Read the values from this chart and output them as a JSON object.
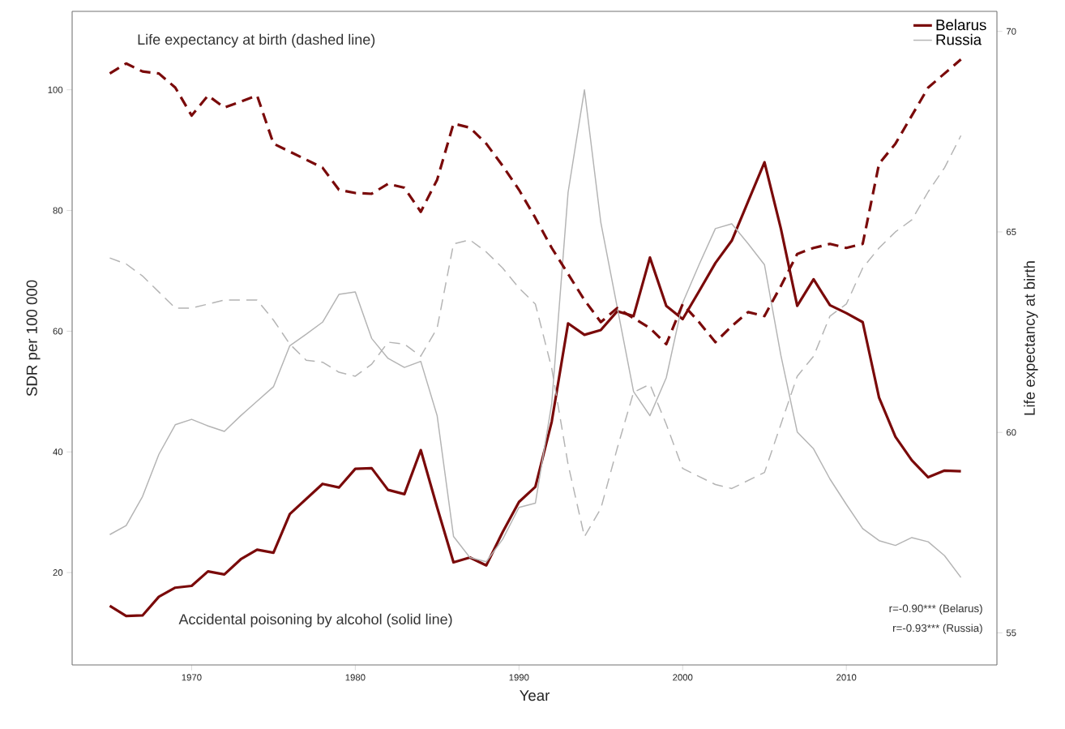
{
  "chart_data": {
    "type": "line",
    "xlabel": "Year",
    "ylabel": "SDR per 100 000",
    "y2label": "Life expectancy at birth",
    "x": [
      1965,
      1966,
      1967,
      1968,
      1969,
      1970,
      1971,
      1972,
      1973,
      1974,
      1975,
      1976,
      1977,
      1978,
      1979,
      1980,
      1981,
      1982,
      1983,
      1984,
      1985,
      1986,
      1987,
      1988,
      1989,
      1990,
      1991,
      1992,
      1993,
      1994,
      1995,
      1996,
      1997,
      1998,
      1999,
      2000,
      2001,
      2002,
      2003,
      2004,
      2005,
      2006,
      2007,
      2008,
      2009,
      2010,
      2011,
      2012,
      2013,
      2014,
      2015,
      2016,
      2017
    ],
    "series": [
      {
        "name": "Belarus",
        "color": "#7a0a0a",
        "line_style": "solid",
        "values": [
          14.5,
          12.8,
          12.9,
          16,
          17.5,
          17.8,
          20.2,
          19.7,
          22.2,
          23.8,
          23.3,
          29.7,
          32.2,
          34.7,
          34.1,
          37.2,
          37.3,
          33.7,
          33,
          40.3,
          30.8,
          21.7,
          22.5,
          21.2,
          26.7,
          31.7,
          34.2,
          45,
          61.3,
          59.4,
          60.2,
          63.3,
          62.5,
          72.2,
          64.2,
          62,
          66.6,
          71.3,
          75,
          81.5,
          88,
          77,
          64.2,
          68.6,
          64.3,
          63,
          61.5,
          49,
          42.5,
          38.6,
          35.8,
          36.9,
          36.8
        ]
      },
      {
        "name": "Russia",
        "color": "#b4b4b4",
        "line_style": "solid",
        "values": [
          26.3,
          27.8,
          32.6,
          39.6,
          44.5,
          45.4,
          44.3,
          43.4,
          46,
          48.4,
          50.8,
          57.6,
          59.5,
          61.5,
          66.1,
          66.5,
          58.8,
          55.5,
          54,
          55,
          46,
          26,
          22.5,
          21.8,
          25.5,
          30.8,
          31.5,
          48,
          83,
          100,
          78,
          64,
          50,
          46,
          52.3,
          64.7,
          71,
          77,
          77.8,
          74.5,
          71,
          56,
          43.3,
          40.5,
          35.5,
          31.3,
          27.3,
          25.3,
          24.5,
          25.8,
          25.1,
          22.8,
          19.2
        ]
      },
      {
        "color": "#7a0a0a",
        "line_style": "dashed",
        "axis": "y2",
        "values": [
          68.95,
          69.2,
          69.0,
          68.95,
          68.6,
          67.9,
          68.4,
          68.1,
          68.25,
          68.4,
          67.2,
          67.0,
          66.8,
          66.6,
          66.05,
          65.97,
          65.95,
          66.2,
          66.1,
          65.5,
          66.3,
          67.7,
          67.6,
          67.2,
          66.65,
          66.05,
          65.35,
          64.6,
          63.95,
          63.3,
          62.75,
          63.1,
          62.85,
          62.6,
          62.2,
          63.2,
          62.75,
          62.25,
          62.65,
          63.0,
          62.9,
          63.65,
          64.45,
          64.6,
          64.7,
          64.6,
          64.7,
          66.7,
          67.2,
          67.9,
          68.6,
          68.95,
          69.3
        ]
      },
      {
        "color": "#b4b4b4",
        "line_style": "dashed",
        "axis": "y2",
        "values": [
          64.35,
          64.2,
          63.9,
          63.5,
          63.1,
          63.1,
          63.2,
          63.3,
          63.3,
          63.3,
          62.8,
          62.2,
          61.8,
          61.75,
          61.5,
          61.4,
          61.7,
          62.25,
          62.2,
          61.9,
          62.6,
          64.7,
          64.8,
          64.5,
          64.1,
          63.6,
          63.2,
          61.6,
          59.2,
          57.4,
          58.1,
          59.6,
          61.0,
          61.2,
          60.2,
          59.1,
          58.9,
          58.7,
          58.6,
          58.8,
          59.0,
          60.2,
          61.4,
          61.9,
          62.9,
          63.2,
          64.1,
          64.6,
          65.0,
          65.3,
          66.0,
          66.6,
          67.4
        ]
      }
    ],
    "xlim": [
      1962.7,
      2019.2
    ],
    "xticks": [
      1970,
      1980,
      1990,
      2000,
      2010
    ],
    "ylim": [
      4.7,
      113
    ],
    "yticks": [
      20,
      40,
      60,
      80,
      100
    ],
    "y2lim": [
      54.2,
      70.5
    ],
    "y2ticks": [
      55,
      60,
      65,
      70
    ],
    "legend": "top right",
    "annotations": [
      "Life expectancy at birth (dashed line)",
      "Accidental poisoning by alcohol (solid line)",
      "r=-0.90*** (Belarus)",
      "r=-0.93*** (Russia)"
    ]
  }
}
